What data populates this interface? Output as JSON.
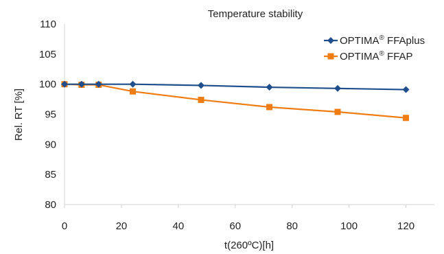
{
  "chart_data": {
    "type": "line",
    "title": "Temperature stability",
    "xlabel": "t(260ºC)[h]",
    "ylabel": "Rel. RT [%]",
    "xlim": [
      0,
      130
    ],
    "ylim": [
      80,
      110
    ],
    "xticks": [
      0,
      20,
      40,
      60,
      80,
      100,
      120
    ],
    "yticks": [
      80,
      85,
      90,
      95,
      100,
      105,
      110
    ],
    "grid": false,
    "legend_position": "top-right",
    "series": [
      {
        "name": "OPTIMA® FFAplus",
        "legend_base": "OPTIMA",
        "legend_sup": "®",
        "legend_suffix": " FFAplus",
        "color": "#1f4e8c",
        "marker": "diamond",
        "x": [
          0,
          6,
          12,
          24,
          48,
          72,
          96,
          120
        ],
        "y": [
          100.0,
          100.0,
          100.0,
          100.0,
          99.8,
          99.5,
          99.3,
          99.1
        ]
      },
      {
        "name": "OPTIMA® FFAP",
        "legend_base": "OPTIMA",
        "legend_sup": "®",
        "legend_suffix": " FFAP",
        "color": "#f07c14",
        "marker": "square",
        "x": [
          0,
          6,
          12,
          24,
          48,
          72,
          96,
          120
        ],
        "y": [
          100.0,
          99.9,
          99.9,
          98.8,
          97.4,
          96.2,
          95.4,
          94.4
        ]
      }
    ]
  }
}
